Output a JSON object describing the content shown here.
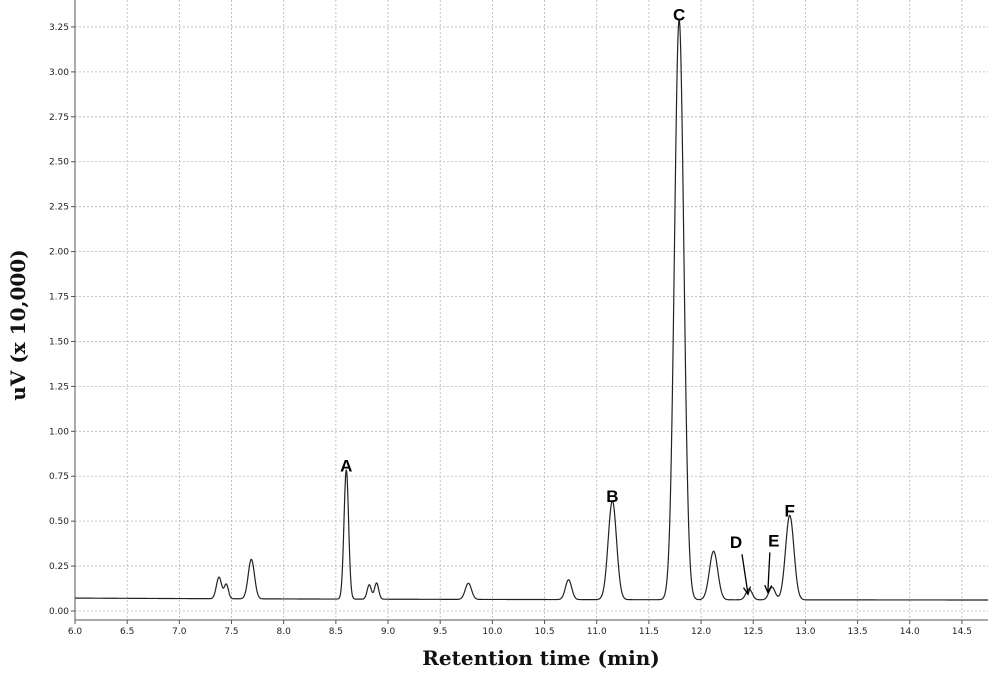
{
  "chart_data": {
    "type": "line",
    "xlabel": "Retention time (min)",
    "ylabel": "uV (x 10,000)",
    "xlim": [
      6.0,
      14.75
    ],
    "ylim": [
      -0.05,
      3.4
    ],
    "x_ticks": [
      "6.0",
      "6.5",
      "7.0",
      "7.5",
      "8.0",
      "8.5",
      "9.0",
      "9.5",
      "10.0",
      "10.5",
      "11.0",
      "11.5",
      "12.0",
      "12.5",
      "13.0",
      "13.5",
      "14.0",
      "14.5"
    ],
    "y_ticks": [
      "0.00",
      "0.25",
      "0.50",
      "0.75",
      "1.00",
      "1.25",
      "1.50",
      "1.75",
      "2.00",
      "2.25",
      "2.50",
      "2.75",
      "3.00",
      "3.25"
    ],
    "grid": true,
    "baseline": 0.06,
    "series": [
      {
        "color": "#222222",
        "peaks": [
          {
            "rt": 7.38,
            "height": 0.12,
            "width": 0.025
          },
          {
            "rt": 7.45,
            "height": 0.08,
            "width": 0.02
          },
          {
            "rt": 7.69,
            "height": 0.22,
            "width": 0.03
          },
          {
            "rt": 8.6,
            "height": 0.72,
            "width": 0.022
          },
          {
            "rt": 8.82,
            "height": 0.08,
            "width": 0.02
          },
          {
            "rt": 8.89,
            "height": 0.09,
            "width": 0.02
          },
          {
            "rt": 9.77,
            "height": 0.09,
            "width": 0.03
          },
          {
            "rt": 10.73,
            "height": 0.11,
            "width": 0.03
          },
          {
            "rt": 11.15,
            "height": 0.55,
            "width": 0.04
          },
          {
            "rt": 11.79,
            "height": 3.23,
            "width": 0.045
          },
          {
            "rt": 12.12,
            "height": 0.27,
            "width": 0.04
          },
          {
            "rt": 12.46,
            "height": 0.06,
            "width": 0.03
          },
          {
            "rt": 12.68,
            "height": 0.07,
            "width": 0.03
          },
          {
            "rt": 12.85,
            "height": 0.47,
            "width": 0.04
          }
        ]
      }
    ],
    "peak_labels": [
      {
        "label": "A",
        "x": 8.6,
        "y": 0.72
      },
      {
        "label": "B",
        "x": 11.15,
        "y": 0.55
      },
      {
        "label": "C",
        "x": 11.79,
        "y": 3.23
      },
      {
        "label": "D",
        "x": 12.45,
        "y": 0.06
      },
      {
        "label": "E",
        "x": 12.64,
        "y": 0.07
      },
      {
        "label": "F",
        "x": 12.85,
        "y": 0.47
      }
    ]
  }
}
